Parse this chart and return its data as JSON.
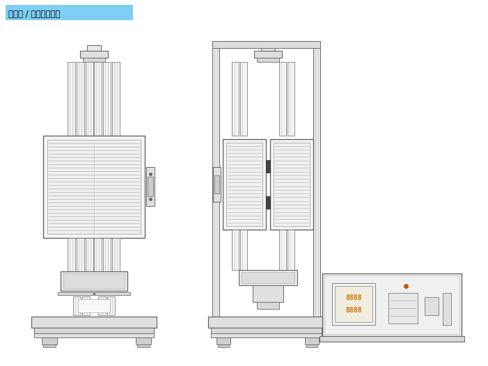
{
  "title": "管状炉 / 縦置イメージ",
  "title_bg": "#7ecef4",
  "bg_color": "#ffffff",
  "lc": "#666666",
  "lc_dark": "#333333",
  "lc_light": "#999999"
}
